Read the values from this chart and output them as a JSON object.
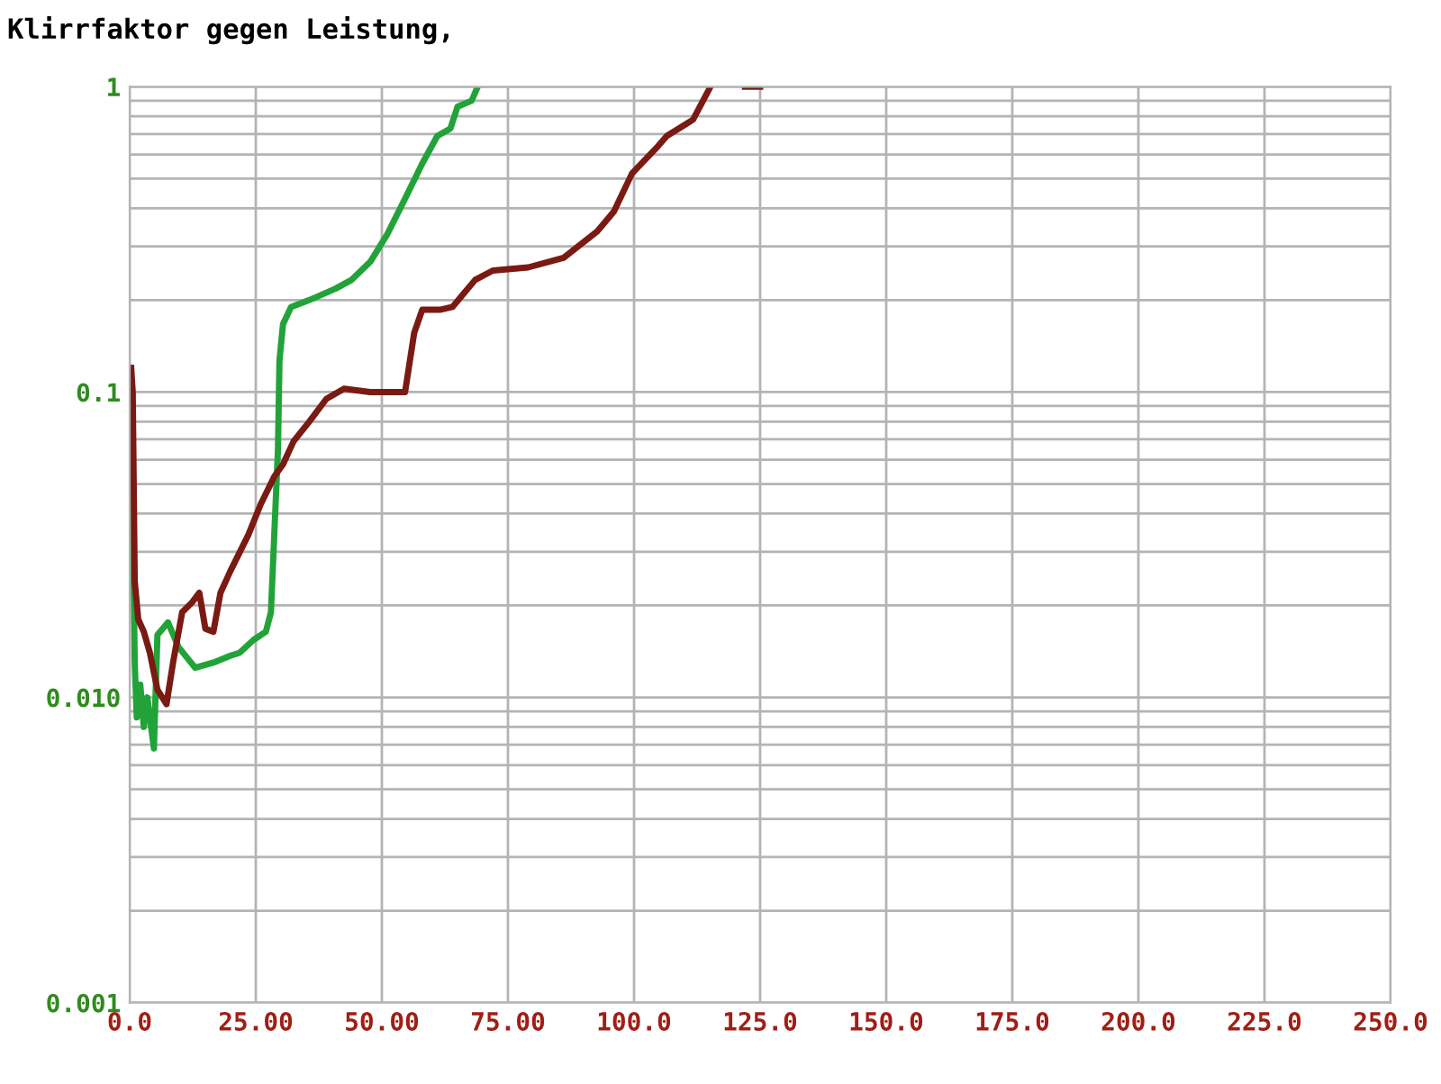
{
  "chart_data": {
    "type": "line",
    "title": "Klirrfaktor gegen Leistung,",
    "log": "y",
    "grid": true,
    "xlim": [
      0,
      250
    ],
    "ylim": [
      0.001,
      1
    ],
    "xticks": [
      {
        "value": 0,
        "label": "0.0"
      },
      {
        "value": 25,
        "label": "25.00"
      },
      {
        "value": 50,
        "label": "50.00"
      },
      {
        "value": 75,
        "label": "75.00"
      },
      {
        "value": 100,
        "label": "100.0"
      },
      {
        "value": 125,
        "label": "125.0"
      },
      {
        "value": 150,
        "label": "150.0"
      },
      {
        "value": 175,
        "label": "175.0"
      },
      {
        "value": 200,
        "label": "200.0"
      },
      {
        "value": 225,
        "label": "225.0"
      },
      {
        "value": 250,
        "label": "250.0"
      }
    ],
    "yticks": [
      {
        "value": 0.001,
        "label": "0.001"
      },
      {
        "value": 0.01,
        "label": "0.010"
      },
      {
        "value": 0.1,
        "label": "0.1"
      },
      {
        "value": 1,
        "label": "1"
      }
    ],
    "series": [
      {
        "color": "#22a33a",
        "x": [
          0.3,
          1,
          1.4,
          2.1,
          2.8,
          3.5,
          4.8,
          5.5,
          7.6,
          9.7,
          13,
          16.6,
          20,
          21.8,
          24.5,
          27,
          28,
          28.7,
          29.4,
          29.7,
          30.4,
          32,
          35.6,
          40.8,
          44,
          47.7,
          51,
          54.6,
          58,
          61,
          63.6,
          65,
          67.8,
          69
        ],
        "values": [
          0.1,
          0.013,
          0.0086,
          0.011,
          0.008,
          0.01,
          0.0068,
          0.016,
          0.0176,
          0.0146,
          0.0125,
          0.013,
          0.0137,
          0.014,
          0.0154,
          0.0164,
          0.019,
          0.035,
          0.065,
          0.127,
          0.167,
          0.19,
          0.2,
          0.218,
          0.233,
          0.267,
          0.327,
          0.43,
          0.56,
          0.69,
          0.73,
          0.86,
          0.9,
          1.0
        ]
      },
      {
        "color": "#7a1a12",
        "x": [
          0.3,
          0.6,
          1,
          1.7,
          2.8,
          4,
          5.5,
          7.3,
          8.6,
          10.4,
          12.4,
          13.8,
          15,
          16.6,
          18,
          20,
          23.5,
          26,
          28.7,
          30.4,
          32.5,
          35.6,
          39,
          42.5,
          47.7,
          54.6,
          56.4,
          58,
          61.5,
          64,
          68.5,
          72,
          79,
          86,
          92.7,
          96,
          99.6,
          104.8,
          106.5,
          111.7,
          115,
          118,
          122,
          125
        ],
        "values": [
          0.12,
          0.1,
          0.024,
          0.018,
          0.0164,
          0.014,
          0.0106,
          0.0095,
          0.013,
          0.019,
          0.0205,
          0.022,
          0.0168,
          0.0164,
          0.022,
          0.026,
          0.034,
          0.043,
          0.053,
          0.058,
          0.069,
          0.08,
          0.095,
          0.1025,
          0.1,
          0.1,
          0.156,
          0.186,
          0.186,
          0.19,
          0.233,
          0.25,
          0.256,
          0.275,
          0.336,
          0.39,
          0.52,
          0.64,
          0.69,
          0.78,
          0.99,
          null,
          1.0,
          1.0
        ]
      }
    ]
  }
}
